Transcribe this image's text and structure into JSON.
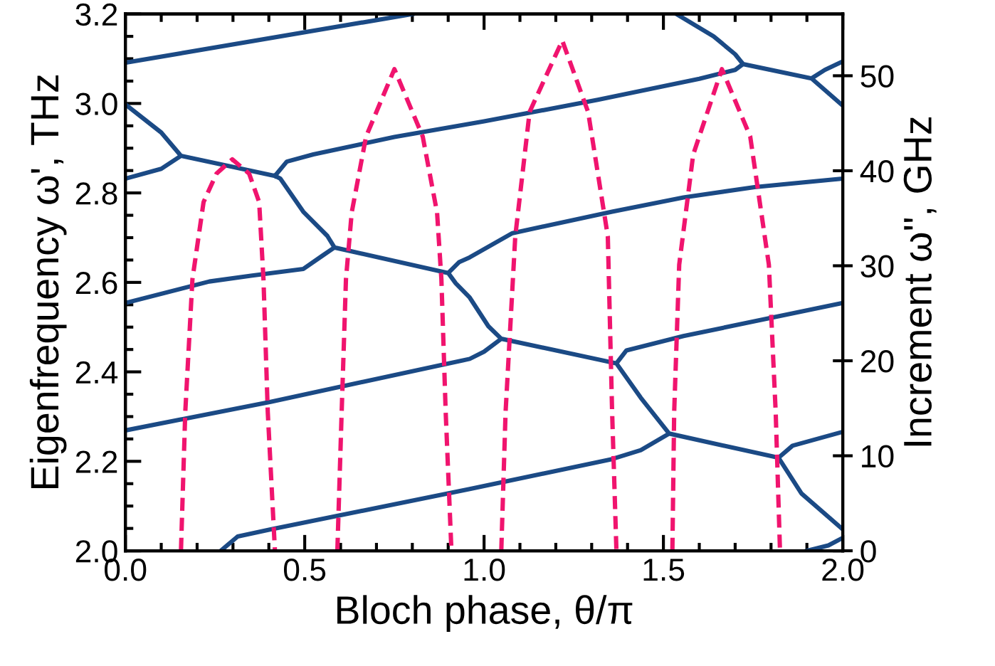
{
  "chart_data": {
    "type": "line",
    "xlabel": "Bloch phase, θ/π",
    "ylabel": "Eigenfrequency ω', THz",
    "y2label": "Increment ω'', GHz",
    "xlim": [
      0,
      2
    ],
    "xticks": [
      {
        "value": 0,
        "label": "0.0"
      },
      {
        "value": 0.5,
        "label": "0.5"
      },
      {
        "value": 1,
        "label": "1.0"
      },
      {
        "value": 1.5,
        "label": "1.5"
      },
      {
        "value": 2,
        "label": "2.0"
      }
    ],
    "ylim": [
      2.0,
      3.2
    ],
    "yticks": [
      {
        "value": 2.0,
        "label": "2.0"
      },
      {
        "value": 2.2,
        "label": "2.2"
      },
      {
        "value": 2.4,
        "label": "2.4"
      },
      {
        "value": 2.6,
        "label": "2.6"
      },
      {
        "value": 2.8,
        "label": "2.8"
      },
      {
        "value": 3.0,
        "label": "3.0"
      },
      {
        "value": 3.2,
        "label": "3.2"
      }
    ],
    "y2lim": [
      0,
      56.5
    ],
    "y2ticks": [
      0,
      10,
      20,
      30,
      40,
      50
    ],
    "grid": false,
    "legend": false,
    "marker": "none",
    "series": [
      {
        "color": "#1b4a85",
        "line_style": "solid",
        "x": [
          0,
          0.8,
          null,
          0,
          0.1,
          0.155,
          0.1,
          0,
          null,
          0.155,
          0.417,
          null,
          0.417,
          0.45,
          0.524,
          0.75,
          1.0,
          1.317,
          1.6,
          1.7,
          1.722,
          null,
          0.417,
          0.432,
          0.496,
          0.563,
          0.583,
          0.55,
          0.496,
          0.35,
          0.234,
          0,
          null,
          1.722,
          1.7,
          1.64,
          1.536,
          null,
          1.722,
          1.913,
          null,
          2.0,
          1.95,
          1.913,
          1.95,
          2.0,
          null,
          0.583,
          0.9,
          null,
          0.9,
          0.93,
          0.96,
          1.079,
          1.357,
          1.556,
          1.754,
          2.0,
          null,
          0.9,
          0.921,
          0.96,
          1.012,
          1.048,
          1.0,
          0.96,
          0.405,
          0,
          null,
          1.048,
          1.369,
          null,
          1.369,
          1.397,
          1.556,
          2.0,
          null,
          1.369,
          1.437,
          1.516,
          1.437,
          1.357,
          0.96,
          0.405,
          0.313,
          0.266,
          null,
          1.516,
          1.821,
          null,
          1.821,
          1.86,
          2.0,
          null,
          1.821,
          1.885,
          2.0,
          null,
          1.901,
          1.96,
          2.0
        ],
        "values": [
          3.091,
          3.2,
          null,
          2.998,
          2.935,
          2.883,
          2.854,
          2.832,
          null,
          2.883,
          2.838,
          null,
          2.838,
          2.87,
          2.886,
          2.925,
          2.96,
          3.008,
          3.055,
          3.075,
          3.088,
          null,
          2.838,
          2.832,
          2.758,
          2.704,
          2.678,
          2.66,
          2.63,
          2.615,
          2.602,
          2.554,
          null,
          3.088,
          3.11,
          3.15,
          3.2,
          null,
          3.088,
          3.056,
          null,
          3.094,
          3.075,
          3.056,
          3.03,
          2.995,
          null,
          2.678,
          2.621,
          null,
          2.621,
          2.645,
          2.656,
          2.71,
          2.758,
          2.79,
          2.813,
          2.832,
          null,
          2.621,
          2.598,
          2.566,
          2.502,
          2.474,
          2.445,
          2.429,
          2.333,
          2.269,
          null,
          2.474,
          2.419,
          null,
          2.419,
          2.448,
          2.48,
          2.554,
          null,
          2.419,
          2.342,
          2.262,
          2.225,
          2.205,
          2.138,
          2.048,
          2.032,
          2.0,
          null,
          2.262,
          2.208,
          null,
          2.208,
          2.235,
          2.266,
          null,
          2.208,
          2.128,
          2.048,
          null,
          2.0,
          2.012,
          2.029
        ]
      },
      {
        "color": "#f0146e",
        "line_style": "dashed",
        "axis": "y2",
        "x": [
          0.155,
          0.167,
          0.187,
          0.218,
          0.254,
          0.298,
          0.345,
          0.373,
          0.385,
          0.397,
          0.417
        ],
        "values": [
          0,
          14.6,
          28.6,
          36.7,
          39.7,
          41.2,
          39.7,
          36.7,
          28.6,
          14.6,
          0
        ]
      },
      {
        "color": "#f0146e",
        "line_style": "dashed",
        "axis": "y2",
        "x": [
          0.591,
          0.603,
          0.615,
          0.631,
          0.671,
          0.75,
          0.829,
          0.869,
          0.881,
          0.893,
          0.909
        ],
        "values": [
          0,
          14.6,
          28.6,
          35.6,
          43.6,
          50.7,
          43.6,
          35.6,
          28.6,
          14.6,
          0
        ]
      },
      {
        "color": "#f0146e",
        "line_style": "dashed",
        "axis": "y2",
        "x": [
          1.048,
          1.06,
          1.087,
          1.127,
          1.218,
          1.29,
          1.345,
          1.357,
          1.369
        ],
        "values": [
          0,
          14.6,
          33.1,
          46.2,
          53.7,
          46.2,
          33.1,
          14.6,
          0
        ]
      },
      {
        "color": "#f0146e",
        "line_style": "dashed",
        "axis": "y2",
        "x": [
          1.525,
          1.53,
          1.544,
          1.583,
          1.663,
          1.742,
          1.794,
          1.813,
          1.825
        ],
        "values": [
          0,
          14.6,
          30.1,
          41.7,
          50.7,
          43.6,
          30.1,
          14.6,
          0
        ]
      }
    ]
  }
}
